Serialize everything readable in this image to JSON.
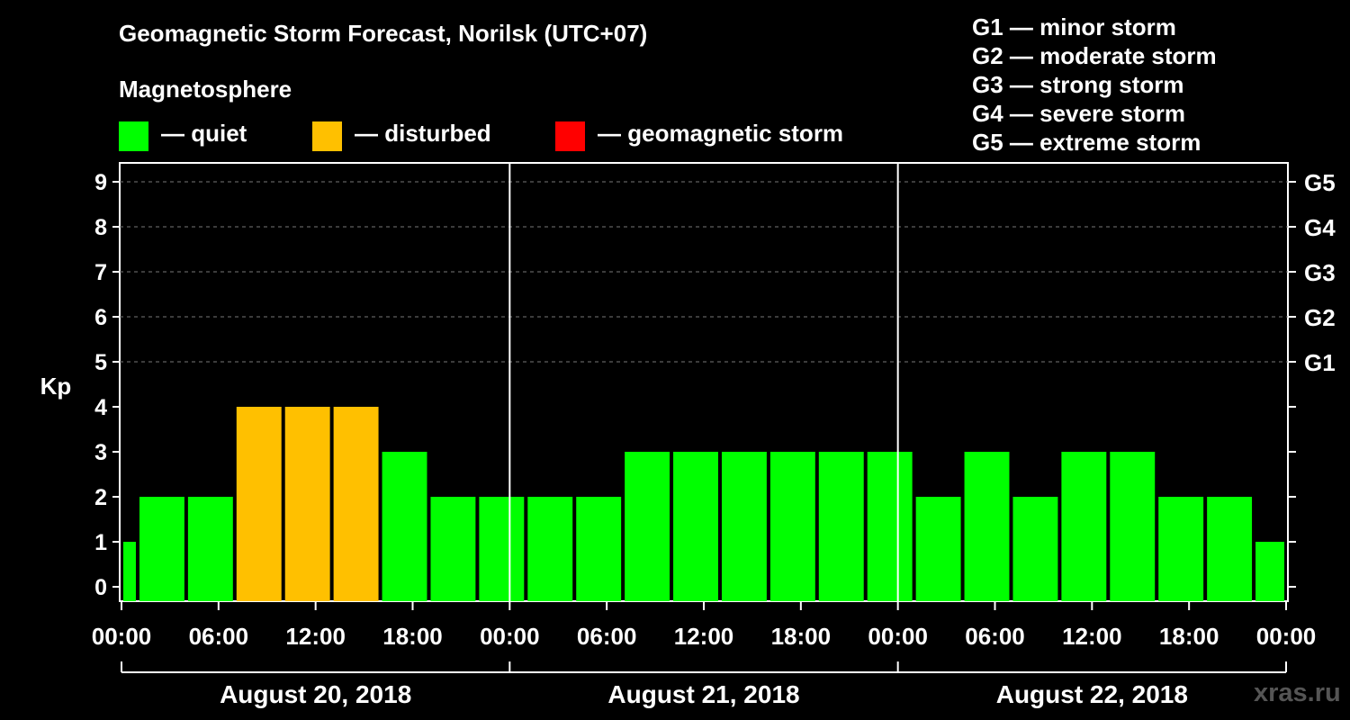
{
  "header": {
    "title": "Geomagnetic Storm Forecast, Norilsk (UTC+07)",
    "subtitle": "Magnetosphere"
  },
  "legend": [
    {
      "label": "— quiet",
      "color": "#00ff00"
    },
    {
      "label": "— disturbed",
      "color": "#ffc000"
    },
    {
      "label": "— geomagnetic storm",
      "color": "#ff0000"
    }
  ],
  "g_scale": [
    "G1 — minor storm",
    "G2 — moderate storm",
    "G3 — strong storm",
    "G4 — severe storm",
    "G5 — extreme storm"
  ],
  "watermark": "xras.ru",
  "chart_data": {
    "type": "bar",
    "title": "Geomagnetic Storm Forecast, Norilsk (UTC+07)",
    "ylabel": "Kp",
    "ylim": [
      0,
      9
    ],
    "yticks": [
      "0",
      "1",
      "2",
      "3",
      "4",
      "5",
      "6",
      "7",
      "8",
      "9"
    ],
    "right_ticks": [
      {
        "kp": 5,
        "label": "G1"
      },
      {
        "kp": 6,
        "label": "G2"
      },
      {
        "kp": 7,
        "label": "G3"
      },
      {
        "kp": 8,
        "label": "G4"
      },
      {
        "kp": 9,
        "label": "G5"
      }
    ],
    "x_tick_labels": [
      "00:00",
      "06:00",
      "12:00",
      "18:00",
      "00:00",
      "06:00",
      "12:00",
      "18:00",
      "00:00",
      "06:00",
      "12:00",
      "18:00",
      "00:00"
    ],
    "days": [
      "August 20, 2018",
      "August 21, 2018",
      "August 22, 2018"
    ],
    "grid": true,
    "bars": [
      {
        "start": "2018-08-20 00:00",
        "end": "2018-08-20 01:00",
        "kp": 1
      },
      {
        "start": "2018-08-20 01:00",
        "end": "2018-08-20 04:00",
        "kp": 2
      },
      {
        "start": "2018-08-20 04:00",
        "end": "2018-08-20 07:00",
        "kp": 2
      },
      {
        "start": "2018-08-20 07:00",
        "end": "2018-08-20 10:00",
        "kp": 4
      },
      {
        "start": "2018-08-20 10:00",
        "end": "2018-08-20 13:00",
        "kp": 4
      },
      {
        "start": "2018-08-20 13:00",
        "end": "2018-08-20 16:00",
        "kp": 4
      },
      {
        "start": "2018-08-20 16:00",
        "end": "2018-08-20 19:00",
        "kp": 3
      },
      {
        "start": "2018-08-20 19:00",
        "end": "2018-08-20 22:00",
        "kp": 2
      },
      {
        "start": "2018-08-20 22:00",
        "end": "2018-08-21 01:00",
        "kp": 2
      },
      {
        "start": "2018-08-21 01:00",
        "end": "2018-08-21 04:00",
        "kp": 2
      },
      {
        "start": "2018-08-21 04:00",
        "end": "2018-08-21 07:00",
        "kp": 2
      },
      {
        "start": "2018-08-21 07:00",
        "end": "2018-08-21 10:00",
        "kp": 3
      },
      {
        "start": "2018-08-21 10:00",
        "end": "2018-08-21 13:00",
        "kp": 3
      },
      {
        "start": "2018-08-21 13:00",
        "end": "2018-08-21 16:00",
        "kp": 3
      },
      {
        "start": "2018-08-21 16:00",
        "end": "2018-08-21 19:00",
        "kp": 3
      },
      {
        "start": "2018-08-21 19:00",
        "end": "2018-08-21 22:00",
        "kp": 3
      },
      {
        "start": "2018-08-21 22:00",
        "end": "2018-08-22 01:00",
        "kp": 3
      },
      {
        "start": "2018-08-22 01:00",
        "end": "2018-08-22 04:00",
        "kp": 2
      },
      {
        "start": "2018-08-22 04:00",
        "end": "2018-08-22 07:00",
        "kp": 3
      },
      {
        "start": "2018-08-22 07:00",
        "end": "2018-08-22 10:00",
        "kp": 2
      },
      {
        "start": "2018-08-22 10:00",
        "end": "2018-08-22 13:00",
        "kp": 3
      },
      {
        "start": "2018-08-22 13:00",
        "end": "2018-08-22 16:00",
        "kp": 3
      },
      {
        "start": "2018-08-22 16:00",
        "end": "2018-08-22 19:00",
        "kp": 2
      },
      {
        "start": "2018-08-22 19:00",
        "end": "2018-08-22 22:00",
        "kp": 2
      },
      {
        "start": "2018-08-22 22:00",
        "end": "2018-08-23 00:00",
        "kp": 1
      }
    ],
    "colors": {
      "quiet": "#00ff00",
      "disturbed": "#ffc000",
      "storm": "#ff0000"
    }
  }
}
